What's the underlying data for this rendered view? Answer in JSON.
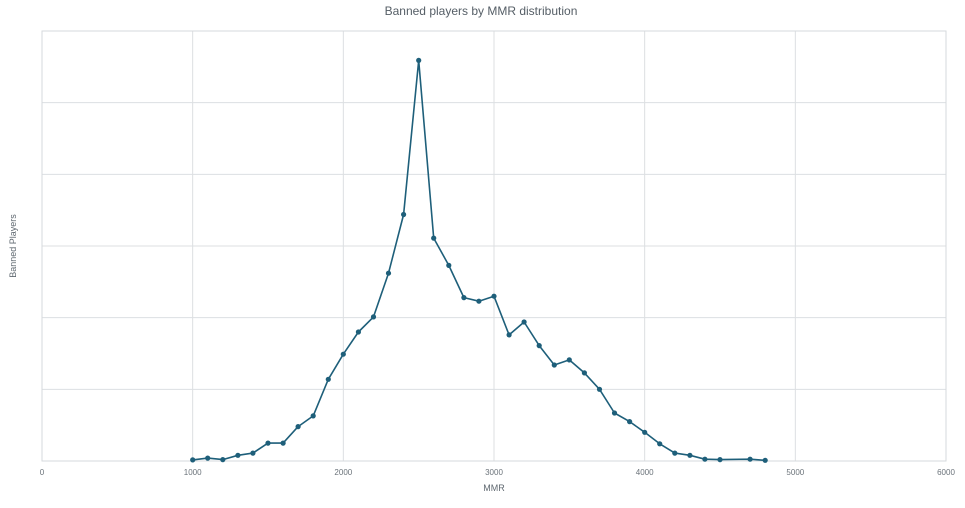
{
  "chart_data": {
    "type": "line",
    "title": "Banned players by MMR distribution",
    "xlabel": "MMR",
    "ylabel": "Banned Players",
    "xlim": [
      0,
      6000
    ],
    "x_ticks": [
      0,
      1000,
      2000,
      3000,
      4000,
      5000,
      6000
    ],
    "ylim": [
      0,
      6000
    ],
    "y_grid_count": 6,
    "y_tick_labels_shown": false,
    "grid": true,
    "legend": "none",
    "series": [
      {
        "color": "#1e5f7a",
        "x": [
          1000,
          1100,
          1200,
          1300,
          1400,
          1500,
          1600,
          1700,
          1800,
          1900,
          2000,
          2100,
          2200,
          2300,
          2400,
          2500,
          2600,
          2700,
          2800,
          2900,
          3000,
          3100,
          3200,
          3300,
          3400,
          3500,
          3600,
          3700,
          3800,
          3900,
          4000,
          4100,
          4200,
          4300,
          4400,
          4500,
          4700,
          4800
        ],
        "values": [
          15,
          40,
          20,
          80,
          110,
          250,
          250,
          480,
          630,
          1140,
          1490,
          1800,
          2010,
          2620,
          3440,
          5590,
          3110,
          2730,
          2280,
          2230,
          2300,
          1760,
          1940,
          1610,
          1340,
          1410,
          1230,
          1000,
          670,
          550,
          400,
          240,
          110,
          80,
          25,
          20,
          25,
          10
        ]
      }
    ]
  }
}
